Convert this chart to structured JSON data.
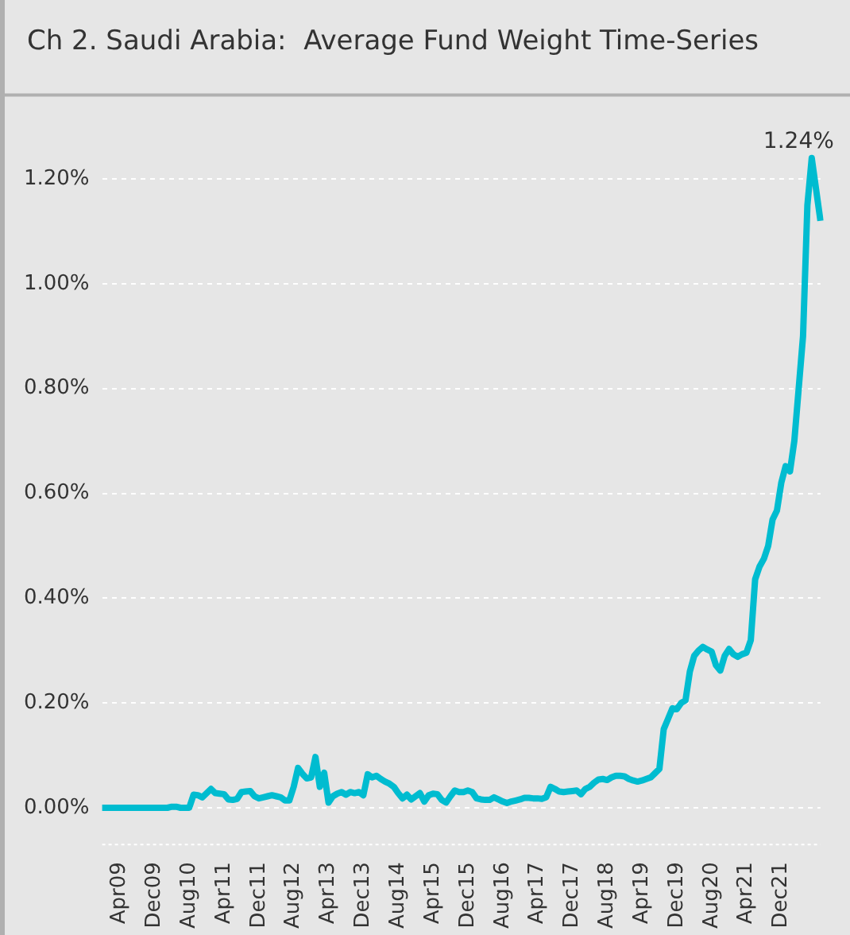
{
  "chart_data": {
    "type": "line",
    "title": "Ch 2. Saudi Arabia:  Average Fund Weight Time-Series",
    "categories": [
      null,
      null,
      null,
      null,
      "Apr09",
      null,
      null,
      null,
      null,
      null,
      null,
      null,
      "Dec09",
      null,
      null,
      null,
      null,
      null,
      null,
      null,
      "Aug10",
      null,
      null,
      null,
      null,
      null,
      null,
      null,
      "Apr11",
      null,
      null,
      null,
      null,
      null,
      null,
      null,
      "Dec11",
      null,
      null,
      null,
      null,
      null,
      null,
      null,
      "Aug12",
      null,
      null,
      null,
      null,
      null,
      null,
      null,
      "Apr13",
      null,
      null,
      null,
      null,
      null,
      null,
      null,
      "Dec13",
      null,
      null,
      null,
      null,
      null,
      null,
      null,
      "Aug14",
      null,
      null,
      null,
      null,
      null,
      null,
      null,
      "Apr15",
      null,
      null,
      null,
      null,
      null,
      null,
      null,
      "Dec15",
      null,
      null,
      null,
      null,
      null,
      null,
      null,
      "Aug16",
      null,
      null,
      null,
      null,
      null,
      null,
      null,
      "Apr17",
      null,
      null,
      null,
      null,
      null,
      null,
      null,
      "Dec17",
      null,
      null,
      null,
      null,
      null,
      null,
      null,
      "Aug18",
      null,
      null,
      null,
      null,
      null,
      null,
      null,
      "Apr19",
      null,
      null,
      null,
      null,
      null,
      null,
      null,
      "Dec19",
      null,
      null,
      null,
      null,
      null,
      null,
      null,
      "Aug20",
      null,
      null,
      null,
      null,
      null,
      null,
      null,
      "Apr21",
      null,
      null,
      null,
      null,
      null,
      null,
      null,
      "Dec21",
      null,
      null,
      null,
      null,
      null,
      null,
      null,
      null,
      null
    ],
    "values": [
      0,
      0,
      0,
      0,
      0,
      0,
      0,
      0,
      0,
      0,
      0,
      0,
      0,
      0,
      0,
      0,
      0.002,
      0.002,
      0,
      0,
      0,
      0.025,
      0.024,
      0.02,
      0.028,
      0.036,
      0.028,
      0.027,
      0.026,
      0.016,
      0.015,
      0.017,
      0.03,
      0.031,
      0.032,
      0.022,
      0.018,
      0.02,
      0.022,
      0.024,
      0.022,
      0.02,
      0.014,
      0.014,
      0.04,
      0.076,
      0.065,
      0.056,
      0.058,
      0.097,
      0.04,
      0.067,
      0.01,
      0.022,
      0.027,
      0.03,
      0.025,
      0.03,
      0.028,
      0.03,
      0.024,
      0.064,
      0.058,
      0.061,
      0.055,
      0.05,
      0.046,
      0.04,
      0.028,
      0.018,
      0.025,
      0.016,
      0.022,
      0.028,
      0.012,
      0.024,
      0.027,
      0.026,
      0.015,
      0.01,
      0.022,
      0.033,
      0.03,
      0.03,
      0.033,
      0.03,
      0.018,
      0.016,
      0.015,
      0.015,
      0.02,
      0.016,
      0.012,
      0.009,
      0.012,
      0.014,
      0.016,
      0.019,
      0.019,
      0.018,
      0.018,
      0.017,
      0.02,
      0.04,
      0.036,
      0.031,
      0.03,
      0.031,
      0.032,
      0.033,
      0.026,
      0.036,
      0.04,
      0.048,
      0.054,
      0.055,
      0.053,
      0.058,
      0.061,
      0.061,
      0.06,
      0.055,
      0.052,
      0.05,
      0.052,
      0.055,
      0.058,
      0.066,
      0.074,
      0.15,
      0.17,
      0.19,
      0.188,
      0.2,
      0.205,
      0.26,
      0.29,
      0.3,
      0.307,
      0.302,
      0.298,
      0.272,
      0.262,
      0.29,
      0.303,
      0.293,
      0.288,
      0.293,
      0.296,
      0.32,
      0.436,
      0.46,
      0.475,
      0.5,
      0.55,
      0.567,
      0.62,
      0.652,
      0.642,
      0.7,
      0.8,
      0.9,
      1.15,
      1.24,
      1.18,
      1.12
    ],
    "value_labels": [
      null,
      null,
      null,
      null,
      null,
      null,
      null,
      null,
      null,
      null,
      null,
      null,
      null,
      null,
      null,
      null,
      null,
      null,
      null,
      null,
      null,
      null,
      null,
      null,
      null,
      null,
      null,
      null,
      null,
      null,
      null,
      null,
      null,
      null,
      null,
      null,
      null,
      null,
      null,
      null,
      null,
      null,
      null,
      null,
      null,
      null,
      null,
      null,
      null,
      null,
      null,
      null,
      null,
      null,
      null,
      null,
      null,
      null,
      null,
      null,
      null,
      null,
      null,
      null,
      null,
      null,
      null,
      null,
      null,
      null,
      null,
      null,
      null,
      null,
      null,
      null,
      null,
      null,
      null,
      null,
      null,
      null,
      null,
      null,
      null,
      null,
      null,
      null,
      null,
      null,
      null,
      null,
      null,
      null,
      null,
      null,
      null,
      null,
      null,
      null,
      null,
      null,
      null,
      null,
      null,
      null,
      null,
      null,
      null,
      null,
      null,
      null,
      null,
      null,
      null,
      null,
      null,
      null,
      null,
      null,
      null,
      null,
      null,
      null,
      null,
      null,
      null,
      null,
      null,
      null,
      null,
      null,
      null,
      null,
      null,
      null,
      null,
      null,
      null,
      null,
      null,
      null,
      null,
      null,
      null,
      null,
      null,
      null,
      null,
      null,
      null,
      null,
      null,
      null,
      null,
      null,
      null,
      null,
      null,
      null,
      null,
      null,
      null,
      "1.24%",
      null,
      null
    ],
    "color": "#00bcd0",
    "ylim": [
      -0.07,
      1.36
    ],
    "yticks": [
      {
        "value": 0,
        "label": "0.00%"
      },
      {
        "value": 0.2,
        "label": "0.20%"
      },
      {
        "value": 0.4,
        "label": "0.40%"
      },
      {
        "value": 0.6,
        "label": "0.60%"
      },
      {
        "value": 0.8,
        "label": "0.80%"
      },
      {
        "value": 1,
        "label": "1.00%"
      },
      {
        "value": 1.2,
        "label": "1.20%"
      }
    ],
    "grid": "y",
    "legend": false,
    "line_style": "solid"
  }
}
